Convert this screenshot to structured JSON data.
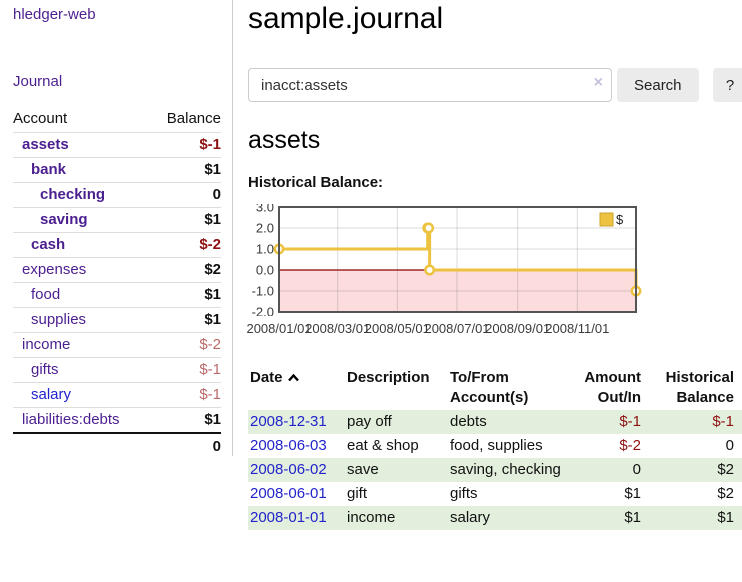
{
  "colors": {
    "link_purple": "#4b1f8f",
    "link_blue": "#2323cc",
    "negative_strong": "#8f1111",
    "negative_faded": "#bb6a6a",
    "row_stripe_green": "#e2efdc",
    "button_bg": "#ebebeb",
    "chart_series_yellow": "#edc240",
    "chart_negative_region_pink": "#fcdcdc",
    "chart_zero_line_red": "#8b0000",
    "chart_border_gray": "#545454"
  },
  "app": {
    "title": "hledger-web"
  },
  "sidebar": {
    "journal_link": "Journal",
    "accounts": {
      "header_account": "Account",
      "header_balance": "Balance",
      "rows": [
        {
          "name": "assets",
          "depth": 1,
          "bold": true,
          "balance": "$-1",
          "balance_style": "negative_strong"
        },
        {
          "name": "bank",
          "depth": 2,
          "bold": true,
          "balance": "$1",
          "balance_style": "normal"
        },
        {
          "name": "checking",
          "depth": 3,
          "bold": true,
          "balance": "0",
          "balance_style": "normal"
        },
        {
          "name": "saving",
          "depth": 3,
          "bold": true,
          "balance": "$1",
          "balance_style": "normal"
        },
        {
          "name": "cash",
          "depth": 2,
          "bold": true,
          "balance": "$-2",
          "balance_style": "negative_strong"
        },
        {
          "name": "expenses",
          "depth": 1,
          "bold": false,
          "balance": "$2",
          "balance_style": "normal"
        },
        {
          "name": "food",
          "depth": 2,
          "bold": false,
          "balance": "$1",
          "balance_style": "normal"
        },
        {
          "name": "supplies",
          "depth": 2,
          "bold": false,
          "balance": "$1",
          "balance_style": "normal"
        },
        {
          "name": "income",
          "depth": 1,
          "bold": false,
          "balance": "$-2",
          "balance_style": "negative_faded"
        },
        {
          "name": "gifts",
          "depth": 2,
          "bold": false,
          "balance": "$-1",
          "balance_style": "negative_faded"
        },
        {
          "name": "salary",
          "depth": 2,
          "bold": false,
          "balance": "$-1",
          "balance_style": "negative_faded",
          "link_style": "blue"
        },
        {
          "name": "liabilities:debts",
          "depth": 1,
          "bold": false,
          "balance": "$1",
          "balance_style": "normal"
        }
      ],
      "total": "0"
    }
  },
  "main": {
    "title": "sample.journal",
    "search": {
      "value": "inacct:assets",
      "clear_icon": "×",
      "search_button": "Search",
      "help_button": "?"
    },
    "account_heading": "assets",
    "chart_label": "Historical Balance:",
    "register": {
      "headers": {
        "date": "Date",
        "description": "Description",
        "tofrom": "To/From Account(s)",
        "amount": "Amount Out/In",
        "balance": "Historical Balance"
      },
      "rows": [
        {
          "date": "2008-12-31",
          "description": "pay off",
          "accounts": "debts",
          "amount": "$-1",
          "amount_negative": true,
          "balance": "$-1",
          "balance_negative": true
        },
        {
          "date": "2008-06-03",
          "description": "eat & shop",
          "accounts": "food, supplies",
          "amount": "$-2",
          "amount_negative": true,
          "balance": "0",
          "balance_negative": false
        },
        {
          "date": "2008-06-02",
          "description": "save",
          "accounts": "saving, checking",
          "amount": "0",
          "amount_negative": false,
          "balance": "$2",
          "balance_negative": false
        },
        {
          "date": "2008-06-01",
          "description": "gift",
          "accounts": "gifts",
          "amount": "$1",
          "amount_negative": false,
          "balance": "$2",
          "balance_negative": false
        },
        {
          "date": "2008-01-01",
          "description": "income",
          "accounts": "salary",
          "amount": "$1",
          "amount_negative": false,
          "balance": "$1",
          "balance_negative": false
        }
      ]
    }
  },
  "chart_data": {
    "type": "line",
    "title": "Historical Balance",
    "step": true,
    "series": [
      {
        "name": "$",
        "points": [
          [
            "2008/01/01",
            1
          ],
          [
            "2008/06/01",
            2
          ],
          [
            "2008/06/02",
            2
          ],
          [
            "2008/06/03",
            0
          ],
          [
            "2008/12/31",
            -1
          ]
        ]
      }
    ],
    "x_ticks": [
      "2008/01/01",
      "2008/03/01",
      "2008/05/01",
      "2008/07/01",
      "2008/09/01",
      "2008/11/01"
    ],
    "y_ticks": [
      3.0,
      2.0,
      1.0,
      0.0,
      -1.0,
      -2.0
    ],
    "ylim": [
      -2,
      3
    ],
    "xlabel": "",
    "ylabel": "",
    "grid": true,
    "negative_region_shaded": true,
    "legend": {
      "position": "top-right",
      "entries": [
        "$"
      ]
    }
  }
}
